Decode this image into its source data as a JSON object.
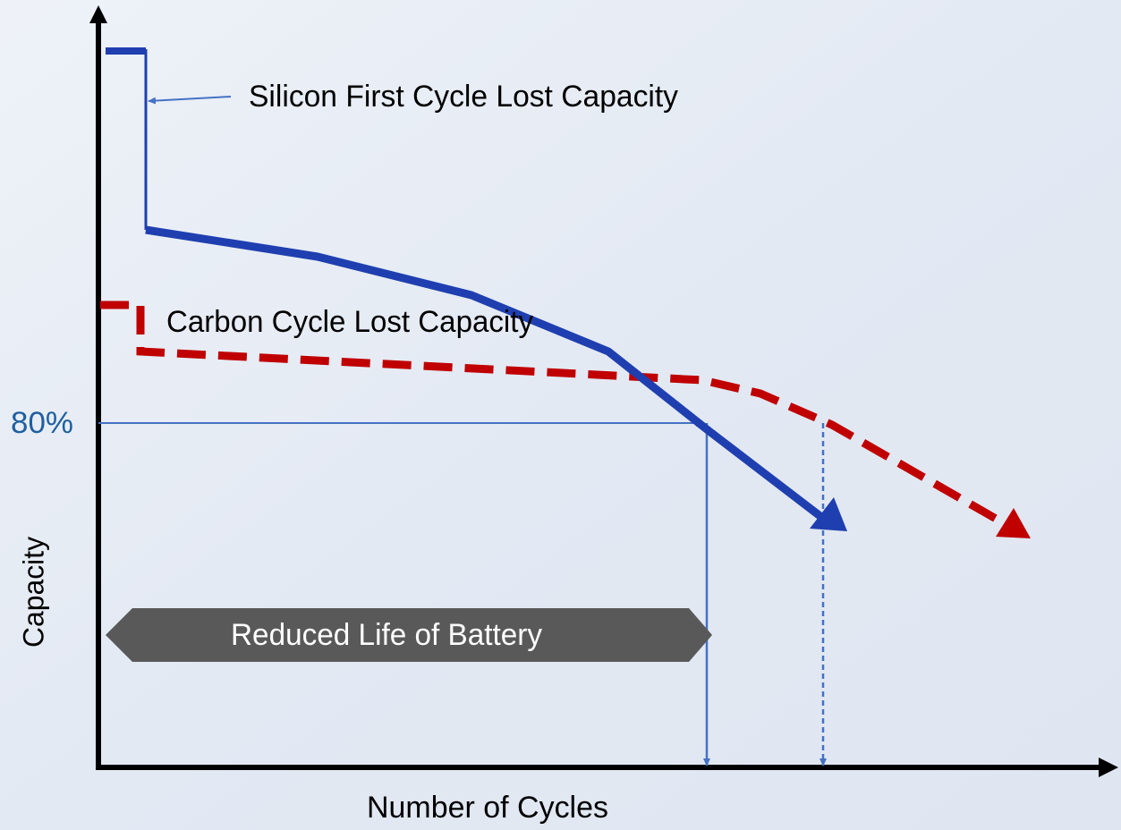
{
  "annotations": {
    "silicon": "Silicon First Cycle Lost Capacity",
    "carbon": "Carbon Cycle Lost Capacity",
    "threshold": "80%",
    "reduced_life": "Reduced Life of Battery"
  },
  "axes": {
    "y_label": "Capacity",
    "x_label": "Number of Cycles"
  }
}
